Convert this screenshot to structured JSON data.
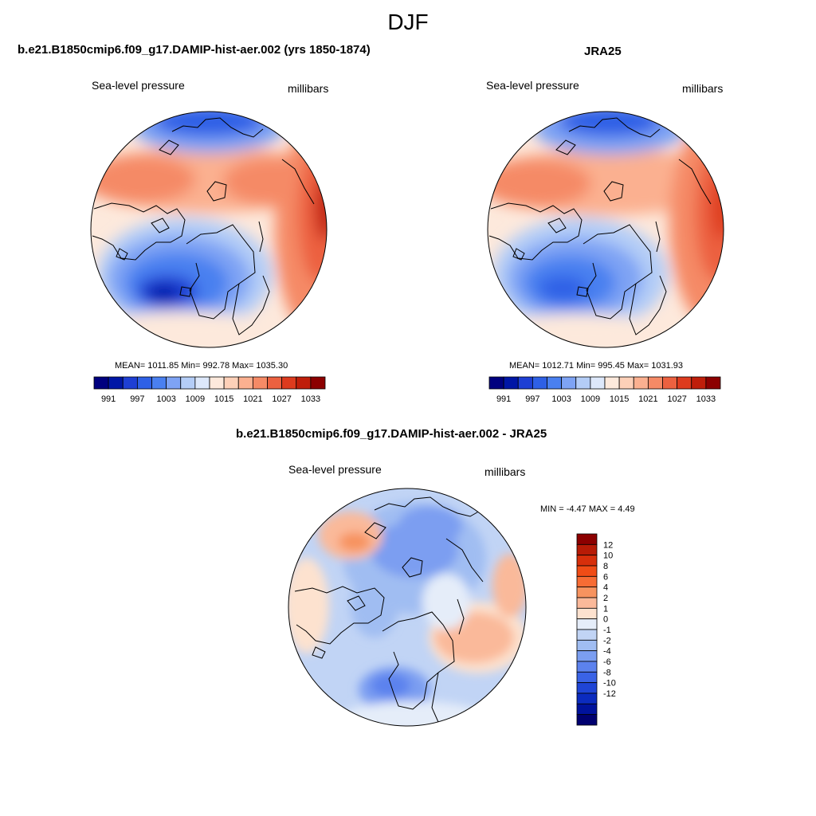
{
  "figure": {
    "season": "DJF",
    "variable_label": "Sea-level pressure",
    "units_label": "millibars"
  },
  "panels": {
    "model": {
      "title": "b.e21.B1850cmip6.f09_g17.DAMIP-hist-aer.002 (yrs 1850-1874)",
      "stats": "MEAN= 1011.85  Min= 992.78  Max= 1035.30",
      "mean": 1011.85,
      "min": 992.78,
      "max": 1035.3
    },
    "obs": {
      "title": "JRA25",
      "stats": "MEAN= 1012.71  Min= 995.45  Max= 1031.93",
      "mean": 1012.71,
      "min": 995.45,
      "max": 1031.93
    },
    "diff": {
      "title": "b.e21.B1850cmip6.f09_g17.DAMIP-hist-aer.002 - JRA25",
      "stats": "MIN =  -4.47 MAX =   4.49",
      "min": -4.47,
      "max": 4.49
    }
  },
  "colorbars": {
    "slp": {
      "colors": [
        "#00007f",
        "#0016a6",
        "#1e3fd4",
        "#2e60e6",
        "#4a80f0",
        "#7ea3f4",
        "#b4cdf7",
        "#dde8fb",
        "#fde9dc",
        "#fdd0b8",
        "#fbb090",
        "#f58a66",
        "#ec6140",
        "#dd3b1e",
        "#bf1e0a",
        "#8c0000"
      ],
      "tick_labels": [
        "991",
        "997",
        "1003",
        "1009",
        "1015",
        "1021",
        "1027",
        "1033"
      ]
    },
    "diff": {
      "colors": [
        "#8c0000",
        "#b71b06",
        "#d72f0b",
        "#f04c16",
        "#f76c34",
        "#f7935f",
        "#fab99a",
        "#fde2cf",
        "#e5edf9",
        "#c1d4f5",
        "#a0bdf2",
        "#7b9ef1",
        "#5c82ee",
        "#3a63e6",
        "#1f45d6",
        "#0b2bbf",
        "#00129c",
        "#000070"
      ],
      "tick_labels": [
        "12",
        "10",
        "8",
        "6",
        "4",
        "2",
        "1",
        "0",
        "-1",
        "-2",
        "-4",
        "-6",
        "-8",
        "-10",
        "-12"
      ]
    }
  }
}
